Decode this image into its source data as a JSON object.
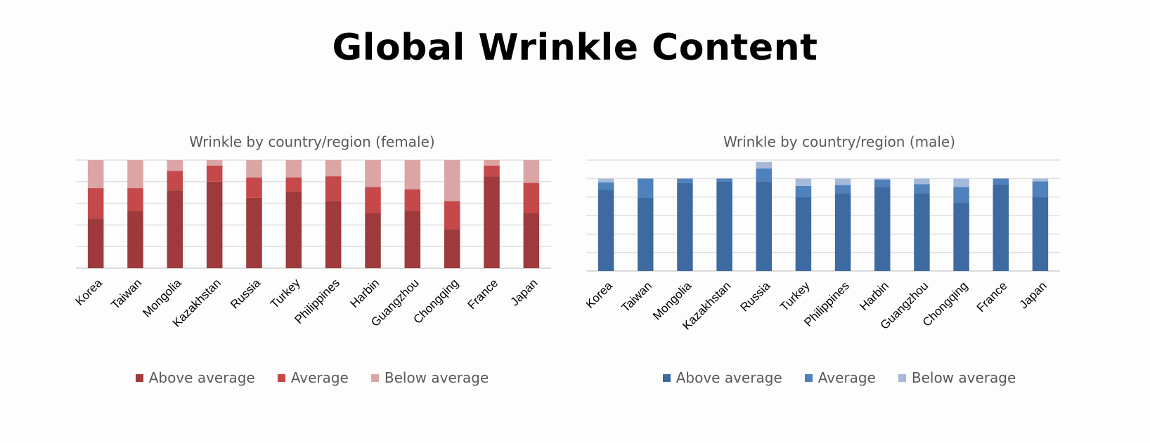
{
  "page_title": "Global Wrinkle Content",
  "chart_data": [
    {
      "type": "bar",
      "stacked": true,
      "title": "Wrinkle by country/region (female)",
      "categories": [
        "Korea",
        "Taiwan",
        "Mongolia",
        "Kazakhstan",
        "Russia",
        "Turkey",
        "Philippines",
        "Harbin",
        "Guangzhou",
        "Chongqing",
        "France",
        "Japan"
      ],
      "series": [
        {
          "name": "Above average",
          "color": "#9e3a3b",
          "values": [
            46,
            53,
            72,
            80,
            65,
            71,
            62,
            51,
            53,
            36,
            85,
            51
          ]
        },
        {
          "name": "Average",
          "color": "#c5494b",
          "values": [
            28,
            21,
            18,
            15,
            19,
            13,
            23,
            24,
            20,
            26,
            10,
            28
          ]
        },
        {
          "name": "Below average",
          "color": "#dca5a5",
          "values": [
            26,
            26,
            10,
            5,
            16,
            16,
            15,
            25,
            27,
            38,
            5,
            21
          ]
        }
      ],
      "ylim": [
        0,
        100
      ],
      "grid": true,
      "legend_position": "bottom"
    },
    {
      "type": "bar",
      "stacked": true,
      "title": "Wrinkle by country/region (male)",
      "categories": [
        "Korea",
        "Taiwan",
        "Mongolia",
        "Kazakhstan",
        "Russia",
        "Turkey",
        "Philippines",
        "Harbin",
        "Guangzhou",
        "Chongqing",
        "France",
        "Japan"
      ],
      "series": [
        {
          "name": "Above average",
          "color": "#3d6aa0",
          "values": [
            88,
            79,
            95,
            97,
            97,
            80,
            84,
            91,
            84,
            74,
            94,
            80
          ]
        },
        {
          "name": "Average",
          "color": "#4f81bd",
          "values": [
            8,
            21,
            5,
            3,
            14,
            12,
            9,
            8,
            10,
            17,
            6,
            17
          ]
        },
        {
          "name": "Below average",
          "color": "#a7b9d9",
          "values": [
            4,
            0,
            0,
            0,
            7,
            8,
            7,
            1,
            6,
            9,
            0,
            3
          ]
        }
      ],
      "ylim": [
        0,
        120
      ],
      "grid": true,
      "legend_position": "bottom"
    }
  ]
}
